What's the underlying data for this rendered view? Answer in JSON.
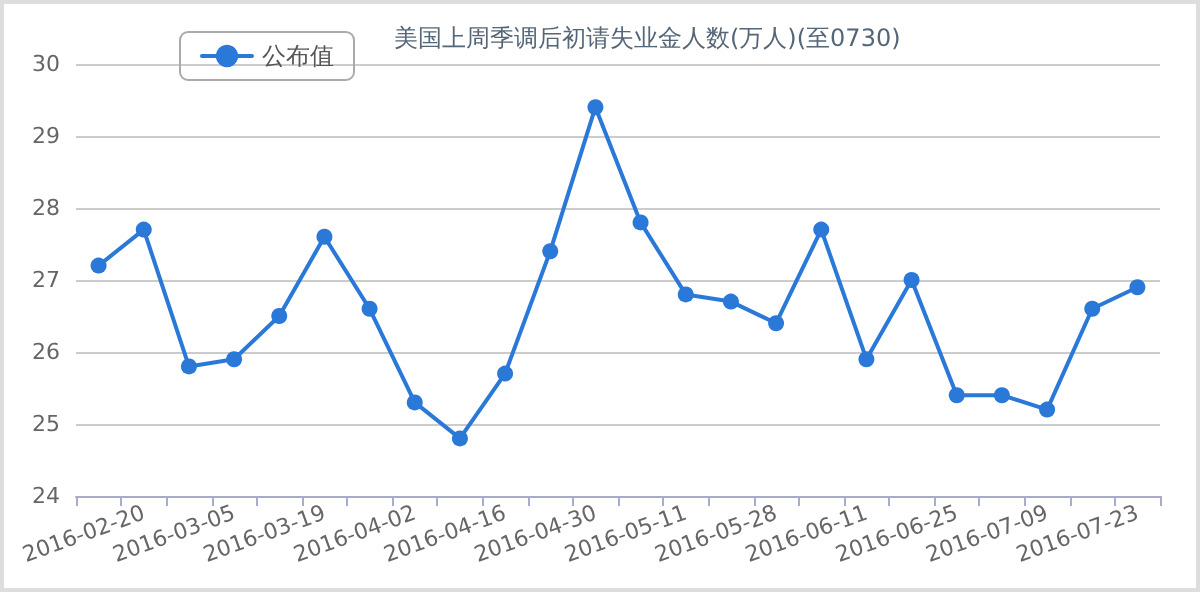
{
  "chart_data": {
    "type": "line",
    "title": "美国上周季调后初请失业金人数(万人)(至0730)",
    "categories": [
      null,
      "2016-02-20",
      null,
      "2016-03-05",
      null,
      "2016-03-19",
      null,
      "2016-04-02",
      null,
      "2016-04-16",
      null,
      "2016-04-30",
      null,
      "2016-05-11",
      null,
      "2016-05-28",
      null,
      "2016-06-11",
      null,
      "2016-06-25",
      null,
      "2016-07-09",
      null,
      "2016-07-23"
    ],
    "series": [
      {
        "name": "公布值",
        "color": "#2a78d8",
        "values": [
          27.2,
          27.7,
          25.8,
          25.9,
          26.5,
          27.6,
          26.6,
          25.3,
          24.8,
          25.7,
          27.4,
          29.4,
          27.8,
          26.8,
          26.7,
          26.4,
          27.7,
          25.9,
          27.0,
          25.4,
          25.4,
          25.2,
          26.6,
          26.9
        ]
      }
    ],
    "ylim": [
      24,
      30
    ],
    "yticks": [
      24,
      25,
      26,
      27,
      28,
      29,
      30
    ],
    "grid": "y",
    "legend": "top left",
    "marker": "circle",
    "line_style": "solid"
  }
}
